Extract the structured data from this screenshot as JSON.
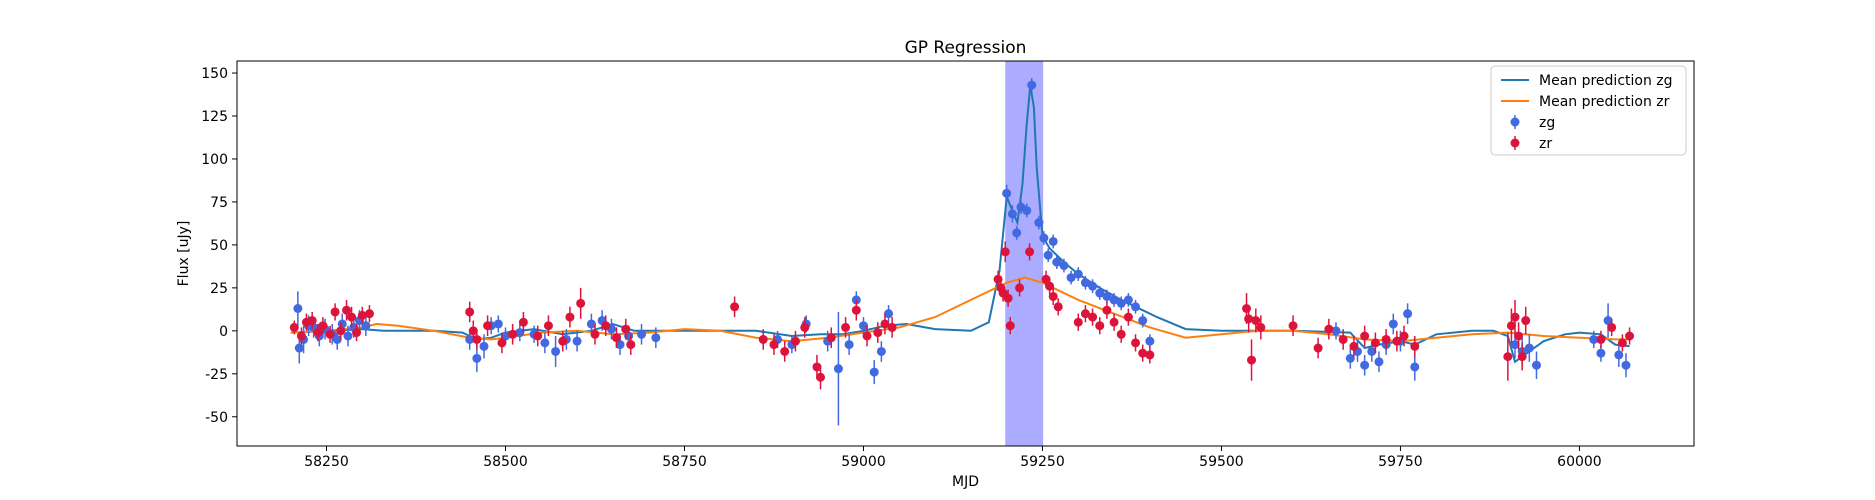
{
  "chart_data": {
    "type": "scatter",
    "title": "GP Regression",
    "xlabel": "MJD",
    "ylabel": "Flux [uJy]",
    "xlim": [
      58125,
      60160
    ],
    "ylim": [
      -67,
      157
    ],
    "xticks": [
      58250,
      58500,
      58750,
      59000,
      59250,
      59500,
      59750,
      60000
    ],
    "yticks": [
      -50,
      -25,
      0,
      25,
      50,
      75,
      100,
      125,
      150
    ],
    "grid": false,
    "legend_position": "top-right",
    "shaded_region": {
      "x": [
        59198,
        59251
      ],
      "color": "#0000ff",
      "opacity": 0.33
    },
    "series": [
      {
        "name": "Mean prediction zg",
        "kind": "line",
        "color": "#1f77b4",
        "x": [
          58200,
          58260,
          58300,
          58330,
          58400,
          58440,
          58460,
          58480,
          58500,
          58540,
          58580,
          58620,
          58650,
          58680,
          58750,
          58850,
          58900,
          58940,
          58970,
          59000,
          59030,
          59060,
          59100,
          59150,
          59175,
          59190,
          59200,
          59210,
          59215,
          59222,
          59228,
          59233,
          59238,
          59242,
          59250,
          59260,
          59280,
          59300,
          59330,
          59360,
          59390,
          59410,
          59450,
          59500,
          59600,
          59680,
          59700,
          59720,
          59750,
          59770,
          59800,
          59850,
          59880,
          59900,
          59910,
          59920,
          59930,
          59950,
          59980,
          60000,
          60030,
          60050,
          60070
        ],
        "y": [
          -1,
          0,
          1,
          0,
          0,
          -1,
          -5,
          -4,
          -1,
          1,
          -2,
          0,
          4,
          0,
          0,
          0,
          -3,
          -2,
          -2,
          0,
          3,
          4,
          1,
          0,
          5,
          35,
          78,
          68,
          63,
          85,
          120,
          143,
          130,
          95,
          55,
          48,
          40,
          33,
          25,
          18,
          12,
          8,
          1,
          0,
          0,
          -1,
          -10,
          -8,
          -6,
          -8,
          -2,
          0,
          0,
          -3,
          -18,
          -15,
          -12,
          -6,
          -2,
          -1,
          -2,
          -8,
          -9
        ]
      },
      {
        "name": "Mean prediction zr",
        "kind": "line",
        "color": "#ff7f0e",
        "x": [
          58200,
          58250,
          58300,
          58320,
          58350,
          58400,
          58450,
          58480,
          58500,
          58550,
          58600,
          58650,
          58700,
          58750,
          58800,
          58850,
          58900,
          58950,
          59000,
          59050,
          59100,
          59150,
          59200,
          59225,
          59250,
          59300,
          59350,
          59400,
          59450,
          59500,
          59550,
          59600,
          59650,
          59700,
          59750,
          59800,
          59850,
          59900,
          59950,
          60000,
          60050,
          60070
        ],
        "y": [
          -1,
          0,
          2,
          4,
          3,
          0,
          -4,
          -5,
          -4,
          -1,
          0,
          -2,
          -1,
          1,
          0,
          -4,
          -6,
          -4,
          -1,
          2,
          8,
          18,
          28,
          31,
          28,
          18,
          10,
          2,
          -4,
          -2,
          0,
          0,
          -2,
          -5,
          -6,
          -4,
          -2,
          -1,
          -3,
          -4,
          -5,
          -5
        ]
      },
      {
        "name": "zg",
        "kind": "errorbar",
        "color": "#4169e1",
        "x": [
          58210,
          58212,
          58218,
          58225,
          58232,
          58240,
          58248,
          58258,
          58265,
          58272,
          58280,
          58288,
          58296,
          58305,
          58450,
          58460,
          58470,
          58480,
          58490,
          58500,
          58520,
          58540,
          58555,
          58570,
          58585,
          58600,
          58620,
          58635,
          58648,
          58660,
          58672,
          58690,
          58710,
          58880,
          58900,
          58920,
          58950,
          58965,
          58980,
          58990,
          59000,
          59015,
          59025,
          59035,
          59200,
          59208,
          59214,
          59220,
          59228,
          59235,
          59245,
          59252,
          59258,
          59265,
          59270,
          59280,
          59290,
          59300,
          59310,
          59320,
          59330,
          59340,
          59350,
          59360,
          59370,
          59380,
          59390,
          59400,
          59660,
          59680,
          59690,
          59700,
          59710,
          59720,
          59730,
          59740,
          59750,
          59760,
          59770,
          59910,
          59920,
          59930,
          59940,
          60020,
          60030,
          60040,
          60055,
          60065
        ],
        "y": [
          13,
          -10,
          -5,
          3,
          2,
          -3,
          1,
          -2,
          -5,
          4,
          -3,
          2,
          6,
          3,
          -5,
          -16,
          -9,
          3,
          4,
          -3,
          -1,
          -2,
          -7,
          -12,
          -5,
          -6,
          4,
          6,
          1,
          -8,
          -3,
          -2,
          -4,
          -5,
          -8,
          4,
          -6,
          -22,
          -8,
          18,
          3,
          -24,
          -12,
          10,
          80,
          68,
          57,
          72,
          70,
          143,
          63,
          54,
          44,
          52,
          40,
          38,
          31,
          33,
          28,
          26,
          22,
          20,
          18,
          16,
          18,
          14,
          6,
          -6,
          0,
          -16,
          -12,
          -20,
          -12,
          -18,
          -8,
          4,
          -6,
          10,
          -21,
          -8,
          -12,
          -10,
          -20,
          -5,
          -13,
          6,
          -14,
          -20
        ],
        "err": [
          10,
          9,
          8,
          6,
          6,
          6,
          6,
          6,
          6,
          6,
          6,
          6,
          6,
          6,
          6,
          8,
          7,
          5,
          5,
          5,
          5,
          5,
          6,
          9,
          6,
          6,
          6,
          6,
          6,
          6,
          6,
          6,
          6,
          5,
          5,
          5,
          6,
          33,
          6,
          5,
          5,
          7,
          6,
          5,
          5,
          5,
          4,
          4,
          4,
          4,
          4,
          4,
          4,
          4,
          4,
          4,
          4,
          4,
          4,
          4,
          4,
          4,
          4,
          4,
          4,
          4,
          4,
          4,
          5,
          6,
          6,
          6,
          6,
          6,
          6,
          6,
          6,
          6,
          8,
          8,
          8,
          8,
          8,
          5,
          5,
          10,
          7,
          7
        ]
      },
      {
        "name": "zr",
        "kind": "errorbar",
        "color": "#dc143c",
        "x": [
          58205,
          58215,
          58222,
          58230,
          58238,
          58245,
          58255,
          58262,
          58270,
          58278,
          58285,
          58292,
          58300,
          58310,
          58450,
          58455,
          58460,
          58475,
          58495,
          58510,
          58525,
          58545,
          58560,
          58580,
          58590,
          58605,
          58625,
          58640,
          58655,
          58668,
          58675,
          58820,
          58860,
          58875,
          58890,
          58905,
          58918,
          58935,
          58940,
          58955,
          58975,
          58990,
          59005,
          59020,
          59030,
          59040,
          59188,
          59192,
          59195,
          59198,
          59202,
          59205,
          59218,
          59232,
          59255,
          59260,
          59265,
          59272,
          59300,
          59310,
          59320,
          59330,
          59340,
          59350,
          59360,
          59370,
          59380,
          59390,
          59400,
          59535,
          59538,
          59542,
          59548,
          59555,
          59600,
          59635,
          59650,
          59670,
          59685,
          59700,
          59715,
          59730,
          59745,
          59755,
          59770,
          59900,
          59905,
          59910,
          59915,
          59920,
          59925,
          60030,
          60045,
          60060,
          60070
        ],
        "y": [
          2,
          -3,
          5,
          6,
          -1,
          3,
          -2,
          11,
          0,
          12,
          8,
          -1,
          9,
          10,
          11,
          0,
          -5,
          3,
          -7,
          -2,
          5,
          -3,
          3,
          -6,
          8,
          16,
          -2,
          3,
          -4,
          1,
          -8,
          14,
          -5,
          -8,
          -12,
          -6,
          2,
          -21,
          -27,
          -4,
          2,
          12,
          -3,
          -1,
          4,
          2,
          30,
          25,
          22,
          46,
          19,
          3,
          25,
          46,
          30,
          26,
          20,
          14,
          5,
          10,
          8,
          3,
          12,
          5,
          -2,
          8,
          -7,
          -13,
          -14,
          13,
          7,
          -17,
          6,
          2,
          3,
          -10,
          1,
          -5,
          -9,
          -3,
          -7,
          -5,
          -6,
          -3,
          -9,
          -15,
          3,
          8,
          -3,
          -15,
          6,
          -5,
          2,
          -7,
          -3
        ],
        "err": [
          4,
          5,
          5,
          5,
          5,
          5,
          5,
          5,
          5,
          6,
          6,
          5,
          5,
          5,
          6,
          6,
          6,
          6,
          6,
          6,
          6,
          6,
          6,
          6,
          6,
          9,
          6,
          6,
          6,
          6,
          6,
          6,
          6,
          6,
          6,
          6,
          6,
          7,
          7,
          6,
          6,
          6,
          6,
          6,
          6,
          6,
          5,
          5,
          5,
          6,
          5,
          5,
          5,
          5,
          5,
          5,
          5,
          5,
          5,
          5,
          5,
          5,
          5,
          5,
          5,
          5,
          5,
          5,
          5,
          9,
          8,
          12,
          7,
          7,
          6,
          6,
          6,
          6,
          6,
          6,
          6,
          6,
          6,
          6,
          6,
          14,
          10,
          10,
          8,
          8,
          8,
          5,
          5,
          5,
          5
        ]
      }
    ]
  }
}
